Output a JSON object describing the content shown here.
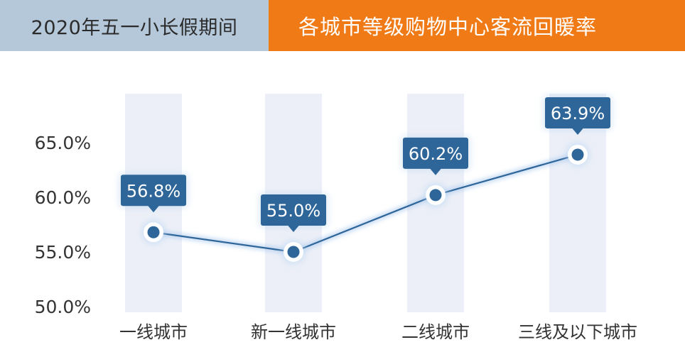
{
  "header": {
    "left_title": "2020年五一小长假期间",
    "right_title": "各城市等级购物中心客流回暖率"
  },
  "colors": {
    "header_left_bg": "#b5c8da",
    "header_right_bg": "#ef7a16",
    "band": "#eceff7",
    "line": "#2f6699",
    "label_bg": "#2f6699",
    "text": "#333333"
  },
  "chart_data": {
    "type": "line",
    "categories": [
      "一线城市",
      "新一线城市",
      "二线城市",
      "三线及以下城市"
    ],
    "values": [
      56.8,
      55.0,
      60.2,
      63.9
    ],
    "value_labels": [
      "56.8%",
      "55.0%",
      "60.2%",
      "63.9%"
    ],
    "y_ticks": [
      "50.0%",
      "55.0%",
      "60.0%",
      "65.0%"
    ],
    "y_tick_values": [
      50,
      55,
      60,
      65
    ],
    "ylim": [
      50,
      68.5
    ],
    "grid": false,
    "legend": "none"
  }
}
